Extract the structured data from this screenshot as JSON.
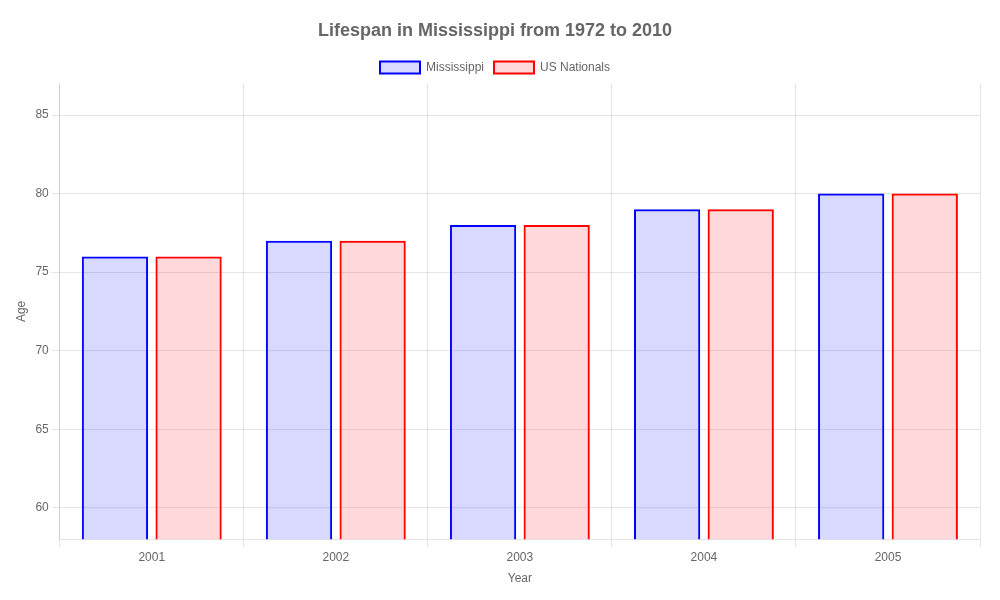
{
  "chart_data": {
    "type": "bar",
    "title": "Lifespan in Mississippi from 1972 to 2010",
    "x_label": "Year",
    "y_label": "Age",
    "categories": [
      "2001",
      "2002",
      "2003",
      "2004",
      "2005"
    ],
    "series": [
      {
        "name": "Mississippi",
        "color": "#0000ff",
        "values": [
          76,
          77,
          78,
          79,
          80
        ]
      },
      {
        "name": "US Nationals",
        "color": "#ff0000",
        "values": [
          76,
          77,
          78,
          79,
          80
        ]
      }
    ],
    "ylim": [
      58,
      87
    ],
    "yticks": [
      60,
      65,
      70,
      75,
      80,
      85
    ],
    "grid": true,
    "legend": "top"
  }
}
